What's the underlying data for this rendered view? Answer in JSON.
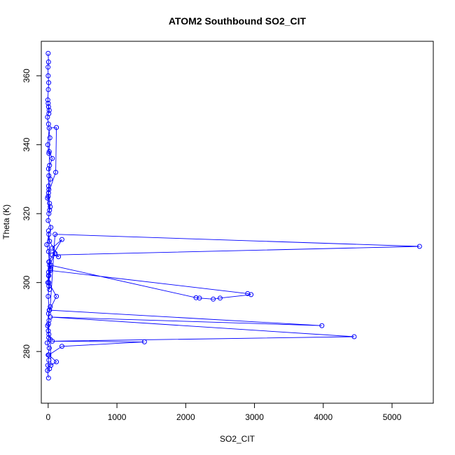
{
  "chart_data": {
    "type": "line",
    "title": "ATOM2 Southbound SO2_CIT",
    "xlabel": "SO2_CIT",
    "ylabel": "Theta (K)",
    "xlim": [
      -100,
      5600
    ],
    "ylim": [
      265,
      370
    ],
    "xticks": [
      0,
      1000,
      2000,
      3000,
      4000,
      5000
    ],
    "yticks": [
      280,
      300,
      320,
      340,
      360
    ],
    "grid": false,
    "legend": "none",
    "markers": "open-circle",
    "color": "#0000ff",
    "series": [
      {
        "x": [
          5,
          -10,
          20,
          -5,
          10,
          0,
          15,
          -15,
          8,
          2,
          -8,
          12,
          5,
          30,
          100,
          5400,
          60,
          150,
          20,
          5,
          30,
          2900,
          2950,
          2500,
          2400,
          2200,
          2150,
          40,
          10,
          120,
          20,
          3980,
          30,
          4450,
          60,
          1400,
          200,
          10,
          120,
          40,
          30,
          10,
          5,
          15,
          0,
          10,
          5,
          20,
          100,
          60,
          200,
          10,
          5,
          -5,
          20,
          10,
          30,
          15,
          5,
          -20,
          10,
          40,
          0,
          20,
          -10,
          10,
          30,
          5,
          60,
          15,
          20,
          10,
          5,
          0,
          30,
          10,
          20,
          5,
          110,
          120,
          15,
          -5,
          10,
          25,
          5,
          -10,
          15,
          0,
          10,
          5,
          -5,
          2,
          8,
          0,
          -2,
          5,
          0
        ],
        "y": [
          272.3,
          274.5,
          275.0,
          276.0,
          277.5,
          279.0,
          281.0,
          282.5,
          284.0,
          286.0,
          287.5,
          289.0,
          291.0,
          293.0,
          314.0,
          310.5,
          308.0,
          307.5,
          312.0,
          315.0,
          303.5,
          296.8,
          296.5,
          295.5,
          295.2,
          295.5,
          295.6,
          305.0,
          300.0,
          296.0,
          292.0,
          287.5,
          290.0,
          284.3,
          283.0,
          282.8,
          281.5,
          279.0,
          277.0,
          276.0,
          283.5,
          285.0,
          288.0,
          292.0,
          296.0,
          299.0,
          302.0,
          305.0,
          308.5,
          310.0,
          312.5,
          306.0,
          303.0,
          300.0,
          298.0,
          302.0,
          304.0,
          306.0,
          309.0,
          311.0,
          314.0,
          316.0,
          318.0,
          321.0,
          324.5,
          327.0,
          330.0,
          333.0,
          336.0,
          338.0,
          334.0,
          331.0,
          328.0,
          325.0,
          322.0,
          320.0,
          323.0,
          326.0,
          332.0,
          345.0,
          344.8,
          340.0,
          337.5,
          342.0,
          346.0,
          348.0,
          350.0,
          352.0,
          349.0,
          351.0,
          353.0,
          356.0,
          358.0,
          360.0,
          362.5,
          364.0,
          366.5
        ]
      }
    ]
  }
}
